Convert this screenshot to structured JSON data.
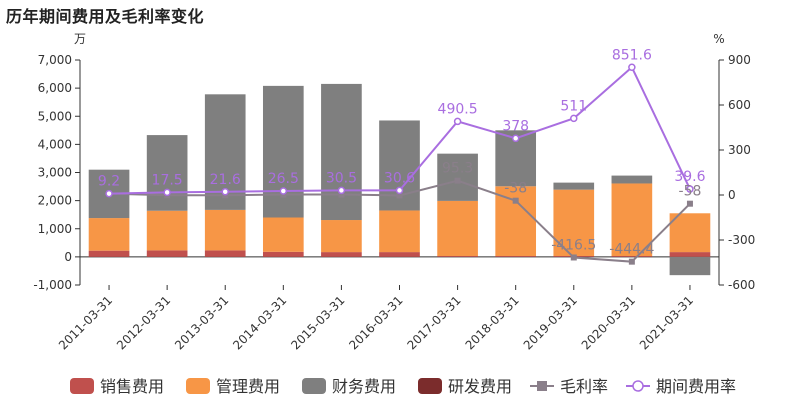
{
  "chart_data": {
    "type": "bar",
    "title": "历年期间费用及毛利率变化",
    "categories": [
      "2011-03-31",
      "2012-03-31",
      "2013-03-31",
      "2014-03-31",
      "2015-03-31",
      "2016-03-31",
      "2017-03-31",
      "2018-03-31",
      "2019-03-31",
      "2020-03-31",
      "2021-03-31"
    ],
    "left_axis": {
      "unit": "万",
      "range": [
        -1000,
        7000
      ],
      "ticks": [
        -1000,
        0,
        1000,
        2000,
        3000,
        4000,
        5000,
        6000,
        7000
      ],
      "tick_labels": [
        "-1,000",
        "0",
        "1,000",
        "2,000",
        "3,000",
        "4,000",
        "5,000",
        "6,000",
        "7,000"
      ]
    },
    "right_axis": {
      "unit": "%",
      "range": [
        -600,
        900
      ],
      "ticks": [
        -600,
        -300,
        0,
        300,
        600,
        900
      ],
      "tick_labels": [
        "-600",
        "-300",
        "0",
        "300",
        "600",
        "900"
      ]
    },
    "stacked": true,
    "series": [
      {
        "name": "销售费用",
        "type": "bar",
        "axis": "left",
        "color": "#c0504d",
        "values": [
          220,
          230,
          230,
          180,
          170,
          170,
          30,
          30,
          30,
          30,
          170
        ]
      },
      {
        "name": "管理费用",
        "type": "bar",
        "axis": "left",
        "color": "#f79646",
        "values": [
          1160,
          1410,
          1440,
          1220,
          1140,
          1480,
          1960,
          2480,
          2360,
          2580,
          1380
        ]
      },
      {
        "name": "财务费用",
        "type": "bar",
        "axis": "left",
        "color": "#7f7f7f",
        "values": [
          1720,
          2690,
          4110,
          4680,
          4840,
          3200,
          1680,
          1990,
          250,
          280,
          -650
        ]
      },
      {
        "name": "研发费用",
        "type": "bar",
        "axis": "left",
        "color": "#7b2c2c",
        "values": [
          0,
          0,
          0,
          0,
          0,
          0,
          0,
          0,
          0,
          0,
          0
        ]
      },
      {
        "name": "毛利率",
        "type": "line",
        "axis": "right",
        "color": "#8a7f8a",
        "marker": "square",
        "values": [
          9.2,
          -2,
          -2,
          3,
          3,
          -3,
          95.3,
          -38,
          -416.5,
          -444.4,
          -58
        ],
        "labels": [
          "",
          "",
          "",
          "",
          "",
          "",
          "95.3",
          "-38",
          "-416.5",
          "-444.4",
          "-58"
        ]
      },
      {
        "name": "期间费用率",
        "type": "line",
        "axis": "right",
        "color": "#a96ee0",
        "marker": "circle",
        "values": [
          9.2,
          17.5,
          21.6,
          26.5,
          30.5,
          30.6,
          490.5,
          378,
          511,
          851.6,
          39.6
        ],
        "labels": [
          "9.2",
          "17.5",
          "21.6",
          "26.5",
          "30.5",
          "30.6",
          "490.5",
          "378",
          "511",
          "851.6",
          "39.6"
        ]
      }
    ],
    "legend": {
      "position": "bottom"
    },
    "grid": false
  }
}
